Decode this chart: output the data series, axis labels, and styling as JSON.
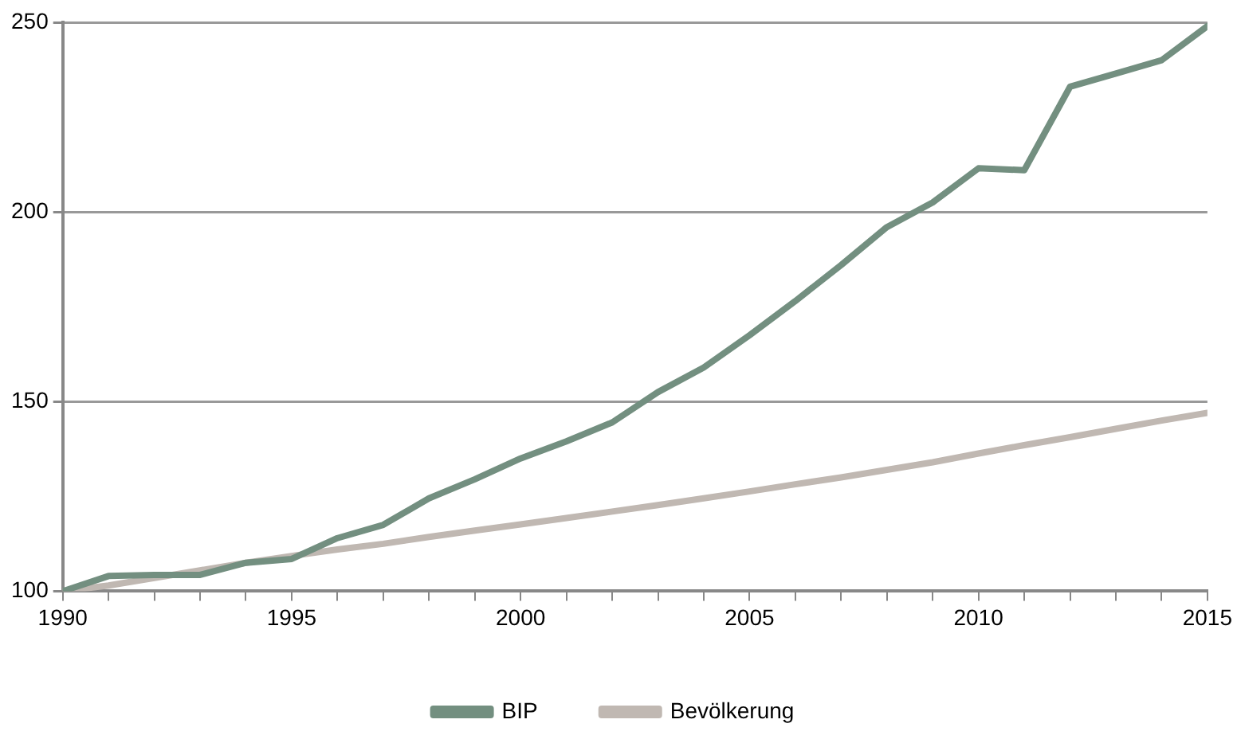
{
  "chart_data": {
    "type": "line",
    "x": [
      1990,
      1991,
      1992,
      1993,
      1994,
      1995,
      1996,
      1997,
      1998,
      1999,
      2000,
      2001,
      2002,
      2003,
      2004,
      2005,
      2006,
      2007,
      2008,
      2009,
      2010,
      2011,
      2012,
      2013,
      2014,
      2015
    ],
    "series": [
      {
        "name": "BIP",
        "color": "#738f80",
        "values": [
          100,
          104,
          104.3,
          104.3,
          107.5,
          108.5,
          114,
          117.5,
          124.5,
          129.5,
          135,
          139.5,
          144.5,
          152.5,
          159,
          167.5,
          176.5,
          186,
          196,
          202.5,
          211.5,
          211,
          233,
          236.5,
          240,
          249
        ]
      },
      {
        "name": "Bevölkerung",
        "color": "#c0b8b2",
        "values": [
          100,
          101.5,
          103.5,
          105.5,
          107.5,
          109.3,
          111,
          112.5,
          114.3,
          116,
          117.6,
          119.3,
          121,
          122.7,
          124.5,
          126.3,
          128.2,
          130,
          132,
          134,
          136.3,
          138.5,
          140.6,
          142.8,
          145,
          147
        ]
      }
    ],
    "xlim": [
      1990,
      2015
    ],
    "xticks": [
      1990,
      {
        "value": 1991,
        "label": null
      },
      {
        "value": 1992,
        "label": null
      },
      {
        "value": 1993,
        "label": null
      },
      {
        "value": 1994,
        "label": null
      },
      1995,
      {
        "value": 1996,
        "label": null
      },
      {
        "value": 1997,
        "label": null
      },
      {
        "value": 1998,
        "label": null
      },
      {
        "value": 1999,
        "label": null
      },
      2000,
      {
        "value": 2001,
        "label": null
      },
      {
        "value": 2002,
        "label": null
      },
      {
        "value": 2003,
        "label": null
      },
      {
        "value": 2004,
        "label": null
      },
      2005,
      {
        "value": 2006,
        "label": null
      },
      {
        "value": 2007,
        "label": null
      },
      {
        "value": 2008,
        "label": null
      },
      {
        "value": 2009,
        "label": null
      },
      2010,
      {
        "value": 2011,
        "label": null
      },
      {
        "value": 2012,
        "label": null
      },
      {
        "value": 2013,
        "label": null
      },
      {
        "value": 2014,
        "label": null
      },
      2015
    ],
    "ylim": [
      100,
      250
    ],
    "yticks": [
      100,
      150,
      200,
      250
    ],
    "grid": "y",
    "legend": "bottom",
    "marker": "none",
    "line_style": "solid"
  }
}
